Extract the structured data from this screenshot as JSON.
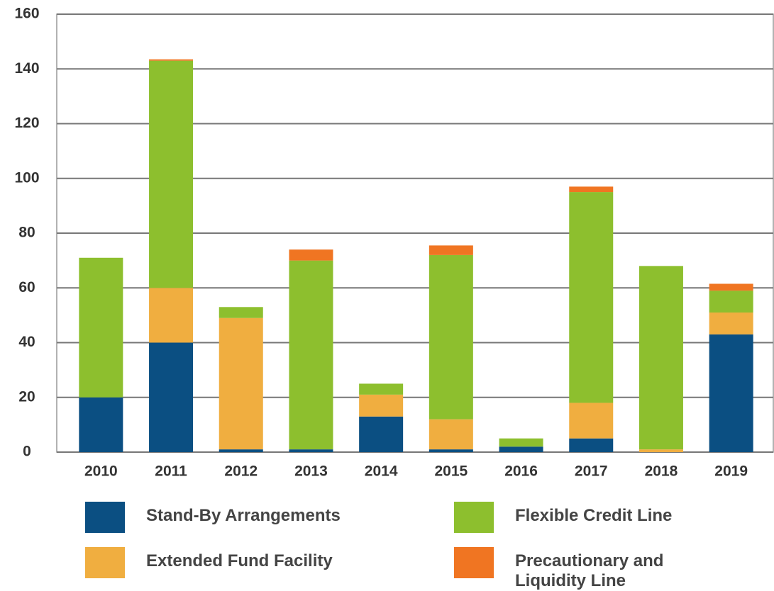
{
  "chart_data": {
    "type": "stacked_bar",
    "categories": [
      "2010",
      "2011",
      "2012",
      "2013",
      "2014",
      "2015",
      "2016",
      "2017",
      "2018",
      "2019"
    ],
    "series": [
      {
        "name": "Stand-By Arrangements",
        "color": "#0b4f82",
        "values": [
          20,
          40,
          1,
          1,
          13,
          1,
          2,
          5,
          0,
          43
        ]
      },
      {
        "name": "Extended Fund Facility",
        "color": "#f0ae40",
        "values": [
          0,
          20,
          48,
          0,
          8,
          11,
          0,
          13,
          1,
          8
        ]
      },
      {
        "name": "Flexible Credit Line",
        "color": "#8dbf2e",
        "values": [
          51,
          83,
          4,
          69,
          4,
          60,
          3,
          77,
          67,
          8
        ]
      },
      {
        "name": "Precautionary and Liquidity Line",
        "color": "#f07522",
        "values": [
          0,
          0.5,
          0,
          4,
          0,
          3.5,
          0,
          2,
          0,
          2.5
        ]
      }
    ],
    "ylim": [
      0,
      160
    ],
    "yticks": [
      0,
      20,
      40,
      60,
      80,
      100,
      120,
      140,
      160
    ],
    "grid": true
  }
}
